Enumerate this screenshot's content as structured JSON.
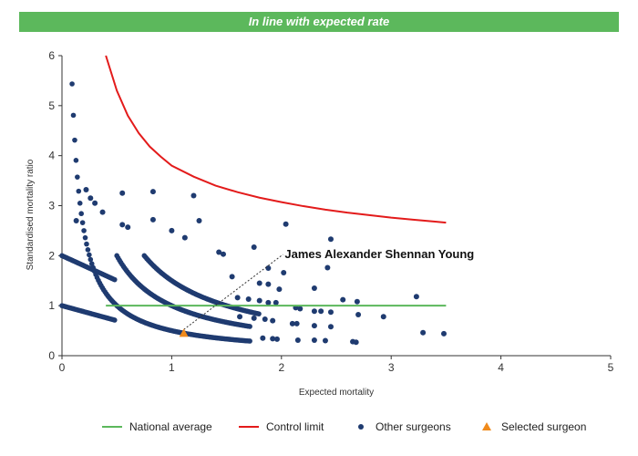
{
  "banner": {
    "title": "In line with expected rate",
    "color": "#5cb85c"
  },
  "chart_data": {
    "type": "scatter",
    "xlabel": "Expected mortality",
    "ylabel": "Standardised mortality ratio",
    "xlim": [
      0,
      5
    ],
    "ylim": [
      0,
      6
    ],
    "x_ticks": [
      "0",
      "1",
      "2",
      "3",
      "4",
      "5"
    ],
    "y_ticks": [
      "0",
      "1",
      "2",
      "3",
      "4",
      "5",
      "6"
    ],
    "grid": false,
    "legend_placement": "bottom",
    "annotation": {
      "text": "James Alexander Shennan Young",
      "x": 1.11,
      "y": 0.45
    },
    "national_average": {
      "name": "National average",
      "color": "#5cb85c",
      "value": 1,
      "x_range": [
        0.4,
        3.5
      ]
    },
    "control_limit": {
      "name": "Control limit",
      "color": "#e31b1b",
      "points": [
        [
          0.4,
          6.0
        ],
        [
          0.5,
          5.3
        ],
        [
          0.6,
          4.8
        ],
        [
          0.7,
          4.45
        ],
        [
          0.8,
          4.18
        ],
        [
          0.9,
          3.98
        ],
        [
          1.0,
          3.8
        ],
        [
          1.2,
          3.58
        ],
        [
          1.4,
          3.4
        ],
        [
          1.6,
          3.27
        ],
        [
          1.8,
          3.16
        ],
        [
          2.0,
          3.07
        ],
        [
          2.2,
          2.99
        ],
        [
          2.4,
          2.92
        ],
        [
          2.6,
          2.86
        ],
        [
          2.8,
          2.81
        ],
        [
          3.0,
          2.76
        ],
        [
          3.2,
          2.72
        ],
        [
          3.4,
          2.68
        ],
        [
          3.5,
          2.66
        ]
      ]
    },
    "curve_bands": {
      "name": "Other surgeons",
      "color": "#1f3b70",
      "bands": [
        {
          "k": 0.5,
          "x_range": [
            0.02,
            1.72
          ]
        },
        {
          "k": 1.0,
          "x_range": [
            0.5,
            1.72
          ]
        },
        {
          "k": 1.5,
          "x_range": [
            0.75,
            1.8
          ]
        },
        {
          "k": 0.5,
          "x_range": [
            0.0,
            0.49
          ]
        },
        {
          "k": 1.0,
          "x_range": [
            0.0,
            0.49
          ]
        }
      ]
    },
    "other_surgeons": {
      "name": "Other surgeons",
      "color": "#1f3b70",
      "points": [
        [
          0.13,
          2.7
        ],
        [
          0.22,
          3.32
        ],
        [
          0.26,
          3.15
        ],
        [
          0.3,
          3.05
        ],
        [
          0.37,
          2.87
        ],
        [
          0.55,
          3.25
        ],
        [
          0.83,
          3.28
        ],
        [
          1.2,
          3.2
        ],
        [
          0.55,
          2.62
        ],
        [
          0.6,
          2.57
        ],
        [
          0.83,
          2.72
        ],
        [
          1.0,
          2.5
        ],
        [
          1.12,
          2.36
        ],
        [
          1.25,
          2.7
        ],
        [
          1.43,
          2.07
        ],
        [
          1.47,
          2.03
        ],
        [
          1.75,
          2.17
        ],
        [
          2.04,
          2.63
        ],
        [
          2.45,
          2.33
        ],
        [
          2.42,
          1.76
        ],
        [
          1.88,
          1.75
        ],
        [
          2.02,
          1.66
        ],
        [
          1.55,
          1.58
        ],
        [
          1.8,
          1.45
        ],
        [
          1.88,
          1.43
        ],
        [
          1.98,
          1.33
        ],
        [
          2.3,
          1.35
        ],
        [
          1.6,
          1.16
        ],
        [
          1.7,
          1.13
        ],
        [
          1.8,
          1.1
        ],
        [
          1.88,
          1.06
        ],
        [
          1.95,
          1.06
        ],
        [
          2.13,
          0.96
        ],
        [
          2.17,
          0.94
        ],
        [
          2.3,
          0.89
        ],
        [
          2.36,
          0.89
        ],
        [
          2.45,
          0.87
        ],
        [
          2.56,
          1.12
        ],
        [
          2.69,
          1.08
        ],
        [
          2.7,
          0.82
        ],
        [
          2.93,
          0.78
        ],
        [
          3.23,
          1.18
        ],
        [
          2.1,
          0.64
        ],
        [
          2.14,
          0.64
        ],
        [
          2.3,
          0.6
        ],
        [
          2.45,
          0.58
        ],
        [
          1.62,
          0.78
        ],
        [
          1.75,
          0.75
        ],
        [
          1.85,
          0.73
        ],
        [
          1.92,
          0.7
        ],
        [
          1.83,
          0.35
        ],
        [
          1.92,
          0.34
        ],
        [
          1.96,
          0.33
        ],
        [
          2.15,
          0.31
        ],
        [
          2.3,
          0.31
        ],
        [
          2.4,
          0.3
        ],
        [
          2.65,
          0.28
        ],
        [
          2.68,
          0.27
        ],
        [
          3.29,
          0.46
        ],
        [
          3.48,
          0.44
        ]
      ]
    },
    "selected_surgeon": {
      "name": "Selected surgeon",
      "color": "#f08a1c",
      "x": 1.11,
      "y": 0.45
    },
    "legend": [
      {
        "label": "National average",
        "kind": "line",
        "color": "#5cb85c"
      },
      {
        "label": "Control limit",
        "kind": "line",
        "color": "#e31b1b"
      },
      {
        "label": "Other surgeons",
        "kind": "dot",
        "color": "#1f3b70"
      },
      {
        "label": "Selected surgeon",
        "kind": "triangle",
        "color": "#f08a1c"
      }
    ]
  }
}
